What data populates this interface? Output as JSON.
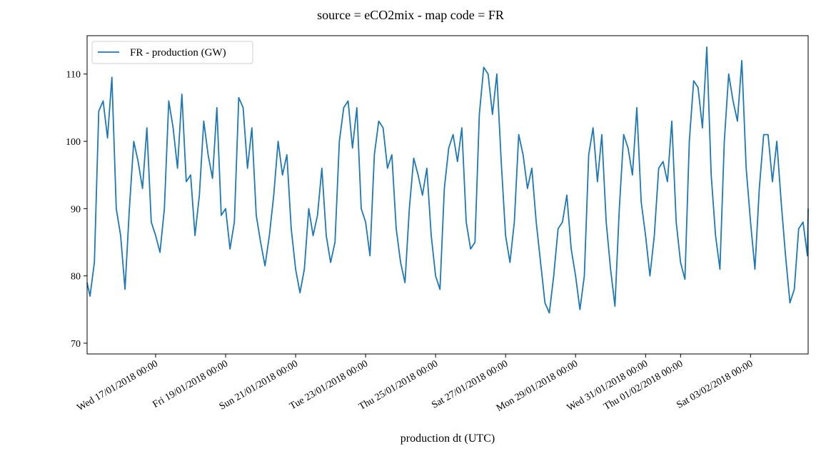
{
  "chart_data": {
    "type": "line",
    "title": "source = eCO2mix - map code = FR",
    "xlabel": "production dt (UTC)",
    "x": [
      "2018-01-15 01:00",
      "2018-01-15 03:00",
      "2018-01-15 06:00",
      "2018-01-15 09:00",
      "2018-01-15 12:00",
      "2018-01-15 15:00",
      "2018-01-15 18:00",
      "2018-01-15 21:00",
      "2018-01-16 00:00",
      "2018-01-16 03:00",
      "2018-01-16 06:00",
      "2018-01-16 09:00",
      "2018-01-16 12:00",
      "2018-01-16 15:00",
      "2018-01-16 18:00",
      "2018-01-16 21:00",
      "2018-01-17 00:00",
      "2018-01-17 03:00",
      "2018-01-17 06:00",
      "2018-01-17 09:00",
      "2018-01-17 12:00",
      "2018-01-17 15:00",
      "2018-01-17 18:00",
      "2018-01-17 21:00",
      "2018-01-18 00:00",
      "2018-01-18 03:00",
      "2018-01-18 06:00",
      "2018-01-18 09:00",
      "2018-01-18 12:00",
      "2018-01-18 15:00",
      "2018-01-18 18:00",
      "2018-01-18 21:00",
      "2018-01-19 00:00",
      "2018-01-19 03:00",
      "2018-01-19 06:00",
      "2018-01-19 09:00",
      "2018-01-19 12:00",
      "2018-01-19 15:00",
      "2018-01-19 18:00",
      "2018-01-19 21:00",
      "2018-01-20 00:00",
      "2018-01-20 03:00",
      "2018-01-20 06:00",
      "2018-01-20 09:00",
      "2018-01-20 12:00",
      "2018-01-20 15:00",
      "2018-01-20 18:00",
      "2018-01-20 21:00",
      "2018-01-21 00:00",
      "2018-01-21 03:00",
      "2018-01-21 06:00",
      "2018-01-21 09:00",
      "2018-01-21 12:00",
      "2018-01-21 15:00",
      "2018-01-21 18:00",
      "2018-01-21 21:00",
      "2018-01-22 00:00",
      "2018-01-22 03:00",
      "2018-01-22 06:00",
      "2018-01-22 09:00",
      "2018-01-22 12:00",
      "2018-01-22 15:00",
      "2018-01-22 18:00",
      "2018-01-22 21:00",
      "2018-01-23 00:00",
      "2018-01-23 03:00",
      "2018-01-23 06:00",
      "2018-01-23 09:00",
      "2018-01-23 12:00",
      "2018-01-23 15:00",
      "2018-01-23 18:00",
      "2018-01-23 21:00",
      "2018-01-24 00:00",
      "2018-01-24 03:00",
      "2018-01-24 06:00",
      "2018-01-24 09:00",
      "2018-01-24 12:00",
      "2018-01-24 15:00",
      "2018-01-24 18:00",
      "2018-01-24 21:00",
      "2018-01-25 00:00",
      "2018-01-25 03:00",
      "2018-01-25 06:00",
      "2018-01-25 09:00",
      "2018-01-25 12:00",
      "2018-01-25 15:00",
      "2018-01-25 18:00",
      "2018-01-25 21:00",
      "2018-01-26 00:00",
      "2018-01-26 03:00",
      "2018-01-26 06:00",
      "2018-01-26 09:00",
      "2018-01-26 12:00",
      "2018-01-26 15:00",
      "2018-01-26 18:00",
      "2018-01-26 21:00",
      "2018-01-27 00:00",
      "2018-01-27 03:00",
      "2018-01-27 06:00",
      "2018-01-27 09:00",
      "2018-01-27 12:00",
      "2018-01-27 15:00",
      "2018-01-27 18:00",
      "2018-01-27 21:00",
      "2018-01-28 00:00",
      "2018-01-28 03:00",
      "2018-01-28 06:00",
      "2018-01-28 09:00",
      "2018-01-28 12:00",
      "2018-01-28 15:00",
      "2018-01-28 18:00",
      "2018-01-28 21:00",
      "2018-01-29 00:00",
      "2018-01-29 03:00",
      "2018-01-29 06:00",
      "2018-01-29 09:00",
      "2018-01-29 12:00",
      "2018-01-29 15:00",
      "2018-01-29 18:00",
      "2018-01-29 21:00",
      "2018-01-30 00:00",
      "2018-01-30 03:00",
      "2018-01-30 06:00",
      "2018-01-30 09:00",
      "2018-01-30 12:00",
      "2018-01-30 15:00",
      "2018-01-30 18:00",
      "2018-01-30 21:00",
      "2018-01-31 00:00",
      "2018-01-31 03:00",
      "2018-01-31 06:00",
      "2018-01-31 09:00",
      "2018-01-31 12:00",
      "2018-01-31 15:00",
      "2018-01-31 18:00",
      "2018-01-31 21:00",
      "2018-02-01 00:00",
      "2018-02-01 03:00",
      "2018-02-01 06:00",
      "2018-02-01 09:00",
      "2018-02-01 12:00",
      "2018-02-01 15:00",
      "2018-02-01 18:00",
      "2018-02-01 21:00",
      "2018-02-02 00:00",
      "2018-02-02 03:00",
      "2018-02-02 06:00",
      "2018-02-02 09:00",
      "2018-02-02 12:00",
      "2018-02-02 15:00",
      "2018-02-02 18:00",
      "2018-02-02 21:00",
      "2018-02-03 00:00",
      "2018-02-03 03:00",
      "2018-02-03 06:00",
      "2018-02-03 09:00",
      "2018-02-03 12:00",
      "2018-02-03 15:00",
      "2018-02-03 18:00",
      "2018-02-03 21:00",
      "2018-02-04 00:00",
      "2018-02-04 03:00",
      "2018-02-04 06:00",
      "2018-02-04 09:00",
      "2018-02-04 12:00",
      "2018-02-04 15:00",
      "2018-02-04 15:30"
    ],
    "series": [
      {
        "name": "FR - production (GW)",
        "color": "#1f77b4",
        "values": [
          79,
          77,
          82,
          104.5,
          106,
          100.5,
          109.5,
          90,
          86,
          78,
          90,
          100,
          97,
          93,
          102,
          88,
          86,
          83.5,
          90,
          106,
          102,
          96,
          107,
          94,
          95,
          86,
          92,
          103,
          98,
          94.5,
          105,
          89,
          90,
          84,
          88,
          106.5,
          105,
          96,
          102,
          89,
          85,
          81.5,
          86,
          92,
          100,
          95,
          98,
          87,
          81,
          77.5,
          81,
          90,
          86,
          89,
          96,
          86,
          82,
          85,
          100,
          105,
          106,
          99,
          105,
          90,
          88,
          83,
          98,
          103,
          102,
          96,
          98,
          87,
          82,
          79,
          90,
          97.5,
          95,
          92,
          96,
          86,
          80,
          78,
          93,
          99,
          101,
          97,
          102,
          88,
          84,
          85,
          104,
          111,
          110,
          104,
          110,
          97,
          86,
          82,
          88,
          101,
          98,
          93,
          96,
          88,
          82,
          76,
          74.5,
          80,
          87,
          88,
          92,
          84,
          80,
          75,
          80,
          98,
          102,
          94,
          101,
          88,
          81,
          75.5,
          90,
          101,
          99,
          95,
          105,
          91,
          86,
          80,
          86,
          96,
          97,
          94,
          103,
          88,
          82,
          79.5,
          100,
          109,
          108,
          102,
          114,
          95,
          86,
          81,
          100,
          110,
          106,
          103,
          112,
          96,
          88,
          81,
          93,
          101,
          101,
          94,
          100,
          91,
          83,
          76,
          78,
          87,
          88,
          83,
          90
        ]
      }
    ],
    "xlim": [
      "2018-01-15 01:00",
      "2018-02-04 15:30"
    ],
    "xticks": [
      {
        "value": "2018-01-17 00:00",
        "label": "Wed 17/01/2018 00:00"
      },
      {
        "value": "2018-01-19 00:00",
        "label": "Fri 19/01/2018 00:00"
      },
      {
        "value": "2018-01-21 00:00",
        "label": "Sun 21/01/2018 00:00"
      },
      {
        "value": "2018-01-23 00:00",
        "label": "Tue 23/01/2018 00:00"
      },
      {
        "value": "2018-01-25 00:00",
        "label": "Thu 25/01/2018 00:00"
      },
      {
        "value": "2018-01-27 00:00",
        "label": "Sat 27/01/2018 00:00"
      },
      {
        "value": "2018-01-29 00:00",
        "label": "Mon 29/01/2018 00:00"
      },
      {
        "value": "2018-01-31 00:00",
        "label": "Wed 31/01/2018 00:00"
      },
      {
        "value": "2018-02-01 00:00",
        "label": "Thu 01/02/2018 00:00"
      },
      {
        "value": "2018-02-03 00:00",
        "label": "Sat 03/02/2018 00:00"
      }
    ],
    "ylim": [
      68.4,
      115.7
    ],
    "yticks": [
      70,
      80,
      90,
      100,
      110
    ],
    "grid": false,
    "legend": "upper left"
  }
}
